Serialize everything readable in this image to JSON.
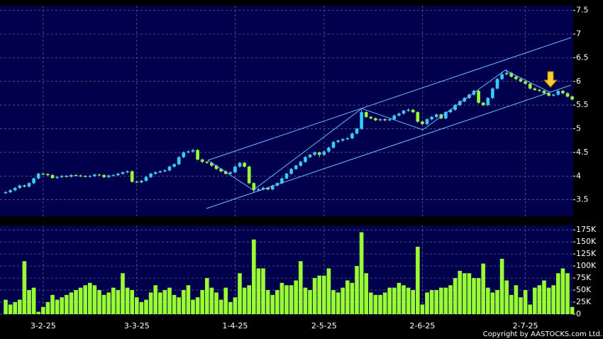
{
  "chart_data": [
    {
      "type": "candlestick",
      "up_color": "#33ccff",
      "down_color": "#99ff33",
      "grid": true,
      "ylim": [
        3.15,
        7.6
      ],
      "yticks": [
        3.5,
        4,
        4.5,
        5,
        5.5,
        6,
        6.5,
        7,
        7.5
      ],
      "ohlc": [
        [
          3.64,
          3.68,
          3.62,
          3.66
        ],
        [
          3.66,
          3.72,
          3.64,
          3.7
        ],
        [
          3.7,
          3.77,
          3.68,
          3.75
        ],
        [
          3.75,
          3.82,
          3.73,
          3.8
        ],
        [
          3.8,
          3.82,
          3.76,
          3.78
        ],
        [
          3.78,
          3.87,
          3.76,
          3.85
        ],
        [
          3.85,
          3.97,
          3.83,
          3.95
        ],
        [
          3.95,
          4.07,
          3.93,
          4.05
        ],
        [
          4.05,
          4.07,
          4.02,
          4.04
        ],
        [
          4.04,
          4.06,
          4.0,
          4.02
        ],
        [
          4.02,
          4.04,
          3.94,
          3.96
        ],
        [
          3.96,
          4.0,
          3.94,
          3.98
        ],
        [
          3.98,
          4.02,
          3.96,
          4.0
        ],
        [
          4.0,
          4.02,
          3.97,
          3.99
        ],
        [
          3.99,
          4.04,
          3.97,
          4.02
        ],
        [
          4.02,
          4.04,
          3.99,
          4.01
        ],
        [
          4.01,
          4.03,
          3.98,
          4.0
        ],
        [
          4.0,
          4.02,
          3.97,
          3.99
        ],
        [
          3.99,
          4.02,
          3.97,
          4.0
        ],
        [
          4.0,
          4.05,
          3.98,
          4.03
        ],
        [
          4.03,
          4.05,
          4.0,
          4.02
        ],
        [
          4.02,
          4.04,
          3.96,
          3.98
        ],
        [
          3.98,
          4.03,
          3.96,
          4.01
        ],
        [
          4.01,
          4.04,
          3.99,
          4.02
        ],
        [
          4.02,
          4.07,
          4.0,
          4.05
        ],
        [
          4.05,
          4.1,
          4.03,
          4.08
        ],
        [
          4.08,
          4.12,
          4.06,
          4.1
        ],
        [
          4.1,
          4.12,
          3.86,
          3.88
        ],
        [
          3.88,
          3.9,
          3.85,
          3.87
        ],
        [
          3.87,
          3.92,
          3.85,
          3.9
        ],
        [
          3.9,
          4.0,
          3.88,
          3.98
        ],
        [
          3.98,
          4.07,
          3.96,
          4.05
        ],
        [
          4.05,
          4.1,
          4.03,
          4.08
        ],
        [
          4.08,
          4.12,
          4.06,
          4.1
        ],
        [
          4.1,
          4.14,
          4.08,
          4.12
        ],
        [
          4.12,
          4.22,
          4.1,
          4.2
        ],
        [
          4.2,
          4.27,
          4.18,
          4.25
        ],
        [
          4.25,
          4.42,
          4.23,
          4.4
        ],
        [
          4.4,
          4.52,
          4.38,
          4.5
        ],
        [
          4.5,
          4.54,
          4.48,
          4.52
        ],
        [
          4.52,
          4.57,
          4.5,
          4.55
        ],
        [
          4.55,
          4.57,
          4.33,
          4.35
        ],
        [
          4.35,
          4.37,
          4.28,
          4.3
        ],
        [
          4.3,
          4.32,
          4.26,
          4.28
        ],
        [
          4.28,
          4.3,
          4.2,
          4.22
        ],
        [
          4.22,
          4.24,
          4.13,
          4.15
        ],
        [
          4.15,
          4.17,
          4.08,
          4.1
        ],
        [
          4.1,
          4.12,
          4.03,
          4.05
        ],
        [
          4.05,
          4.1,
          4.03,
          4.08
        ],
        [
          4.08,
          4.22,
          4.06,
          4.2
        ],
        [
          4.2,
          4.3,
          4.18,
          4.28
        ],
        [
          4.28,
          4.3,
          4.18,
          4.2
        ],
        [
          4.2,
          4.22,
          3.83,
          3.85
        ],
        [
          3.85,
          3.87,
          3.66,
          3.7
        ],
        [
          3.7,
          3.75,
          3.68,
          3.72
        ],
        [
          3.72,
          3.78,
          3.7,
          3.75
        ],
        [
          3.75,
          3.77,
          3.7,
          3.72
        ],
        [
          3.72,
          3.82,
          3.7,
          3.8
        ],
        [
          3.8,
          3.87,
          3.78,
          3.85
        ],
        [
          3.85,
          3.97,
          3.83,
          3.95
        ],
        [
          3.95,
          4.07,
          3.93,
          4.05
        ],
        [
          4.05,
          4.17,
          4.03,
          4.15
        ],
        [
          4.15,
          4.24,
          4.13,
          4.22
        ],
        [
          4.22,
          4.32,
          4.2,
          4.3
        ],
        [
          4.3,
          4.42,
          4.28,
          4.4
        ],
        [
          4.4,
          4.47,
          4.38,
          4.45
        ],
        [
          4.45,
          4.52,
          4.43,
          4.5
        ],
        [
          4.5,
          4.52,
          4.4,
          4.45
        ],
        [
          4.45,
          4.54,
          4.43,
          4.52
        ],
        [
          4.52,
          4.62,
          4.5,
          4.6
        ],
        [
          4.6,
          4.74,
          4.58,
          4.72
        ],
        [
          4.72,
          4.77,
          4.7,
          4.75
        ],
        [
          4.75,
          4.8,
          4.73,
          4.78
        ],
        [
          4.78,
          4.82,
          4.76,
          4.8
        ],
        [
          4.8,
          4.92,
          4.78,
          4.9
        ],
        [
          4.9,
          5.02,
          4.88,
          5.0
        ],
        [
          5.0,
          5.4,
          4.98,
          5.35
        ],
        [
          5.35,
          5.37,
          5.23,
          5.25
        ],
        [
          5.25,
          5.27,
          5.2,
          5.22
        ],
        [
          5.22,
          5.24,
          5.16,
          5.18
        ],
        [
          5.18,
          5.22,
          5.16,
          5.2
        ],
        [
          5.2,
          5.22,
          5.16,
          5.18
        ],
        [
          5.18,
          5.22,
          5.16,
          5.2
        ],
        [
          5.2,
          5.3,
          5.18,
          5.28
        ],
        [
          5.28,
          5.34,
          5.26,
          5.32
        ],
        [
          5.32,
          5.4,
          5.3,
          5.38
        ],
        [
          5.38,
          5.43,
          5.36,
          5.4
        ],
        [
          5.4,
          5.42,
          5.33,
          5.35
        ],
        [
          5.35,
          5.37,
          5.13,
          5.15
        ],
        [
          5.15,
          5.17,
          5.08,
          5.1
        ],
        [
          5.1,
          5.22,
          5.08,
          5.2
        ],
        [
          5.2,
          5.27,
          5.18,
          5.25
        ],
        [
          5.25,
          5.32,
          5.23,
          5.3
        ],
        [
          5.3,
          5.32,
          5.2,
          5.22
        ],
        [
          5.22,
          5.37,
          5.2,
          5.35
        ],
        [
          5.35,
          5.42,
          5.33,
          5.4
        ],
        [
          5.4,
          5.52,
          5.38,
          5.5
        ],
        [
          5.5,
          5.6,
          5.48,
          5.58
        ],
        [
          5.58,
          5.67,
          5.56,
          5.65
        ],
        [
          5.65,
          5.74,
          5.63,
          5.72
        ],
        [
          5.72,
          5.82,
          5.7,
          5.8
        ],
        [
          5.8,
          5.82,
          5.53,
          5.55
        ],
        [
          5.55,
          5.57,
          5.48,
          5.5
        ],
        [
          5.5,
          5.67,
          5.48,
          5.65
        ],
        [
          5.65,
          5.87,
          5.63,
          5.85
        ],
        [
          5.85,
          6.07,
          5.83,
          6.05
        ],
        [
          6.05,
          6.2,
          6.03,
          6.15
        ],
        [
          6.15,
          6.25,
          6.13,
          6.18
        ],
        [
          6.18,
          6.2,
          6.08,
          6.1
        ],
        [
          6.1,
          6.12,
          6.03,
          6.05
        ],
        [
          6.05,
          6.07,
          5.98,
          6.0
        ],
        [
          6.0,
          6.02,
          5.93,
          5.95
        ],
        [
          5.95,
          5.97,
          5.83,
          5.85
        ],
        [
          5.85,
          5.87,
          5.8,
          5.82
        ],
        [
          5.82,
          5.84,
          5.78,
          5.8
        ],
        [
          5.8,
          5.82,
          5.73,
          5.75
        ],
        [
          5.75,
          5.77,
          5.68,
          5.7
        ],
        [
          5.7,
          5.74,
          5.68,
          5.72
        ],
        [
          5.72,
          5.82,
          5.7,
          5.8
        ],
        [
          5.8,
          5.82,
          5.73,
          5.75
        ],
        [
          5.75,
          5.77,
          5.66,
          5.68
        ],
        [
          5.68,
          5.7,
          5.6,
          5.62
        ]
      ]
    },
    {
      "type": "bar",
      "color": "#99ff33",
      "grid": true,
      "ylim": [
        0,
        184000
      ],
      "yticks": [
        0,
        {
          "value": 25000,
          "label": "25K"
        },
        {
          "value": 50000,
          "label": "50K"
        },
        {
          "value": 75000,
          "label": "75K"
        },
        {
          "value": 100000,
          "label": "100K"
        },
        {
          "value": 125000,
          "label": "125K"
        },
        {
          "value": 150000,
          "label": "150K"
        },
        {
          "value": 175000,
          "label": "175K"
        }
      ],
      "categories": [
        null,
        null,
        null,
        null,
        null,
        null,
        null,
        null,
        "3-2-25",
        null,
        null,
        null,
        null,
        null,
        null,
        null,
        null,
        null,
        null,
        null,
        null,
        null,
        null,
        null,
        null,
        null,
        null,
        null,
        "3-3-25",
        null,
        null,
        null,
        null,
        null,
        null,
        null,
        null,
        null,
        null,
        null,
        null,
        null,
        null,
        null,
        null,
        null,
        null,
        null,
        null,
        "1-4-25",
        null,
        null,
        null,
        null,
        null,
        null,
        null,
        null,
        null,
        null,
        null,
        null,
        null,
        null,
        null,
        null,
        null,
        null,
        "2-5-25",
        null,
        null,
        null,
        null,
        null,
        null,
        null,
        null,
        null,
        null,
        null,
        null,
        null,
        null,
        null,
        null,
        null,
        null,
        null,
        null,
        "2-6-25",
        null,
        null,
        null,
        null,
        null,
        null,
        null,
        null,
        null,
        null,
        null,
        null,
        null,
        null,
        null,
        null,
        null,
        null,
        null,
        null,
        null,
        "2-7-25",
        null,
        null,
        null,
        null,
        null,
        null,
        null,
        null,
        null,
        null
      ],
      "values": [
        30000,
        20000,
        25000,
        30000,
        110000,
        50000,
        55000,
        5000,
        15000,
        25000,
        40000,
        30000,
        35000,
        40000,
        45000,
        50000,
        55000,
        60000,
        65000,
        60000,
        50000,
        40000,
        45000,
        55000,
        50000,
        85000,
        55000,
        50000,
        35000,
        25000,
        30000,
        45000,
        60000,
        45000,
        50000,
        55000,
        40000,
        35000,
        50000,
        60000,
        30000,
        35000,
        50000,
        75000,
        55000,
        45000,
        30000,
        55000,
        25000,
        35000,
        85000,
        55000,
        60000,
        155000,
        95000,
        95000,
        50000,
        40000,
        50000,
        65000,
        60000,
        60000,
        70000,
        110000,
        55000,
        50000,
        75000,
        80000,
        80000,
        95000,
        50000,
        45000,
        55000,
        70000,
        65000,
        100000,
        170000,
        85000,
        45000,
        40000,
        40000,
        45000,
        55000,
        55000,
        65000,
        60000,
        55000,
        50000,
        140000,
        20000,
        45000,
        50000,
        50000,
        55000,
        55000,
        60000,
        75000,
        90000,
        85000,
        85000,
        75000,
        75000,
        105000,
        55000,
        45000,
        50000,
        115000,
        70000,
        40000,
        60000,
        35000,
        50000,
        20000,
        55000,
        60000,
        70000,
        55000,
        60000,
        85000,
        95000,
        85000,
        15000
      ]
    }
  ],
  "copyright": "Copyright by AASTOCKS.com Ltd."
}
